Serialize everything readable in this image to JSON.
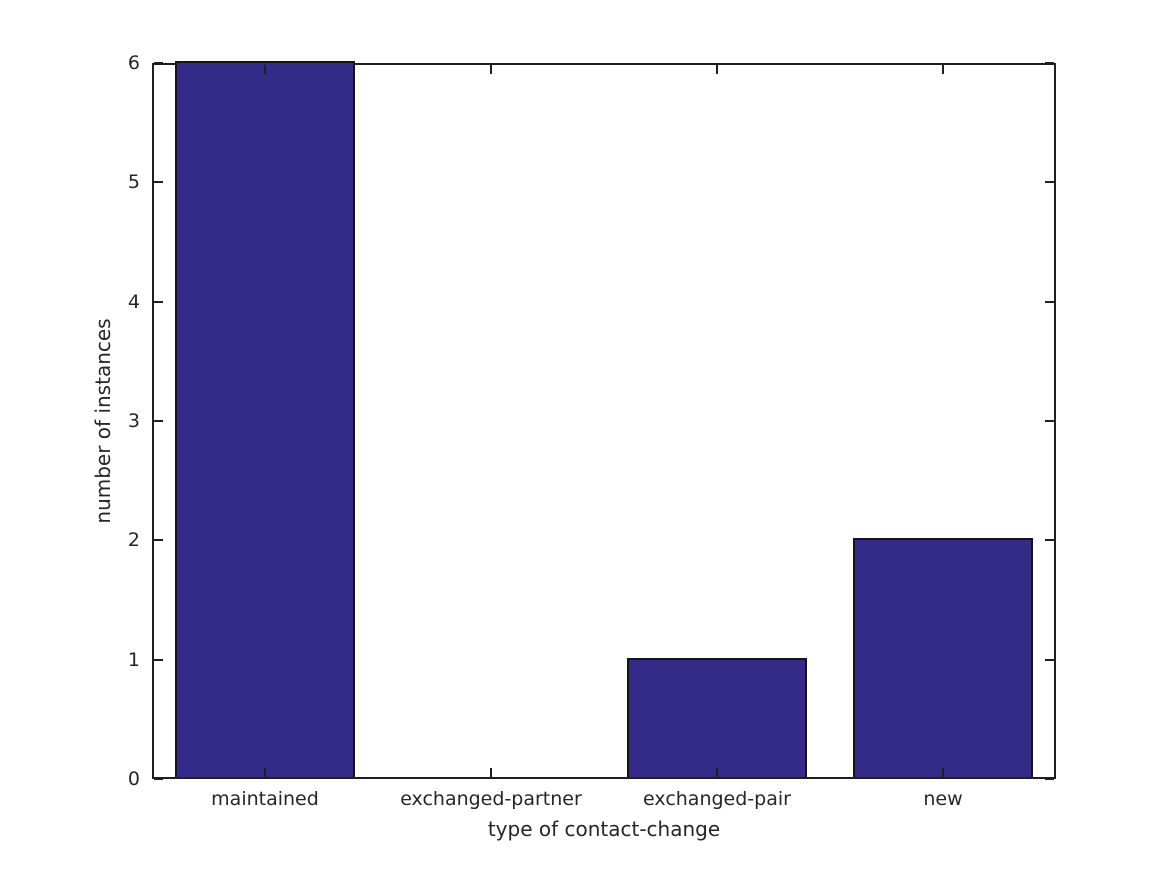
{
  "chart_data": {
    "type": "bar",
    "categories": [
      "maintained",
      "exchanged-partner",
      "exchanged-pair",
      "new"
    ],
    "values": [
      6,
      0,
      1,
      2
    ],
    "title": "",
    "xlabel": "type of contact-change",
    "ylabel": "number of instances",
    "ylim": [
      0,
      6
    ],
    "yticks": [
      0,
      1,
      2,
      3,
      4,
      5,
      6
    ],
    "bar_width_fraction": 0.8,
    "bar_color": "#342a88",
    "bar_edge_color": "#151515",
    "axis_color": "#1f1f1f",
    "text_color": "#262626",
    "grid": false,
    "legend": "none"
  }
}
